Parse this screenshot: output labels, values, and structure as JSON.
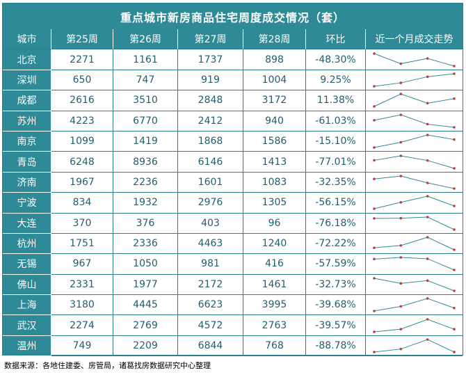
{
  "title": "重点城市新房商品住宅周度成交情况（套）",
  "source": "数据来源：各地住建委、房管局，诸葛找房数据研究中心整理",
  "colors": {
    "header_bg": "#2f8a97",
    "line": "#2f8a97",
    "marker": "#c23a3a",
    "text": "#245d6b"
  },
  "chart_data": {
    "type": "table",
    "columns": [
      "城市",
      "第25周",
      "第26周",
      "第27周",
      "第28周",
      "环比",
      "近一个月成交走势"
    ],
    "rows": [
      {
        "city": "北京",
        "weeks": [
          2271,
          1161,
          1737,
          898
        ],
        "change": "-48.30%"
      },
      {
        "city": "深圳",
        "weeks": [
          650,
          747,
          919,
          1004
        ],
        "change": "9.25%"
      },
      {
        "city": "成都",
        "weeks": [
          2616,
          3510,
          2848,
          3172
        ],
        "change": "11.38%"
      },
      {
        "city": "苏州",
        "weeks": [
          4223,
          6770,
          2412,
          940
        ],
        "change": "-61.03%"
      },
      {
        "city": "南京",
        "weeks": [
          1099,
          1419,
          1868,
          1586
        ],
        "change": "-15.10%"
      },
      {
        "city": "青岛",
        "weeks": [
          6248,
          8936,
          6146,
          1413
        ],
        "change": "-77.01%"
      },
      {
        "city": "济南",
        "weeks": [
          1967,
          2236,
          1601,
          1083
        ],
        "change": "-32.35%"
      },
      {
        "city": "宁波",
        "weeks": [
          834,
          1932,
          2976,
          1305
        ],
        "change": "-56.15%"
      },
      {
        "city": "大连",
        "weeks": [
          370,
          376,
          403,
          96
        ],
        "change": "-76.18%"
      },
      {
        "city": "杭州",
        "weeks": [
          1751,
          2336,
          4463,
          1240
        ],
        "change": "-72.22%"
      },
      {
        "city": "无锡",
        "weeks": [
          967,
          1050,
          981,
          416
        ],
        "change": "-57.59%"
      },
      {
        "city": "佛山",
        "weeks": [
          2331,
          1977,
          2172,
          1461
        ],
        "change": "-32.73%"
      },
      {
        "city": "上海",
        "weeks": [
          3180,
          4445,
          6623,
          3995
        ],
        "change": "-39.68%"
      },
      {
        "city": "武汉",
        "weeks": [
          2274,
          2769,
          4572,
          2763
        ],
        "change": "-39.57%"
      },
      {
        "city": "温州",
        "weeks": [
          749,
          2209,
          6844,
          768
        ],
        "change": "-88.78%"
      }
    ]
  }
}
